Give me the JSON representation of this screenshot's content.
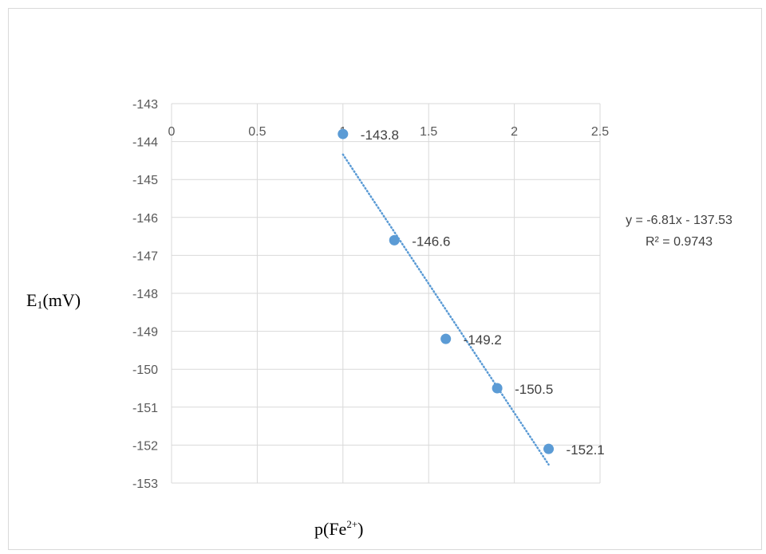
{
  "chart_data": {
    "type": "scatter",
    "title": "",
    "xlabel": {
      "base": "p(Fe",
      "sup": "2+",
      "tail": ")"
    },
    "ylabel": {
      "base": "E",
      "sub": "1",
      "tail": "(mV)"
    },
    "xlim": [
      0,
      2.5
    ],
    "ylim": [
      -153,
      -143
    ],
    "x_ticks": [
      "0",
      "0.5",
      "1",
      "1.5",
      "2",
      "2.5"
    ],
    "y_ticks": [
      "-143",
      "-144",
      "-145",
      "-146",
      "-147",
      "-148",
      "-149",
      "-150",
      "-151",
      "-152",
      "-153"
    ],
    "grid": true,
    "x_axis_position": "top",
    "points": [
      {
        "x": 1.0,
        "y": -143.8,
        "label": "-143.8"
      },
      {
        "x": 1.3,
        "y": -146.6,
        "label": "-146.6"
      },
      {
        "x": 1.6,
        "y": -149.2,
        "label": "-149.2"
      },
      {
        "x": 1.9,
        "y": -150.5,
        "label": "-150.5"
      },
      {
        "x": 2.2,
        "y": -152.1,
        "label": "-152.1"
      }
    ],
    "trendline": {
      "type": "linear",
      "style": "dotted",
      "slope": -6.81,
      "intercept": -137.53,
      "equation": "y = -6.81x - 137.53",
      "r_squared": "R² = 0.9743"
    },
    "colors": {
      "marker": "#5b9bd5",
      "trendline": "#5b9bd5",
      "grid": "#d9d9d9"
    }
  }
}
